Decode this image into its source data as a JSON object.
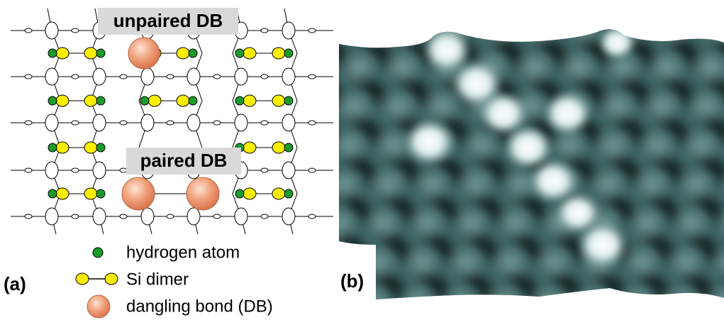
{
  "callouts": {
    "unpaired": "unpaired DB",
    "paired": "paired DB"
  },
  "legend": [
    {
      "label": "hydrogen atom"
    },
    {
      "label": "Si dimer"
    },
    {
      "label": "dangling bond (DB)"
    }
  ],
  "panels": {
    "a": "(a)",
    "b": "(b)"
  }
}
